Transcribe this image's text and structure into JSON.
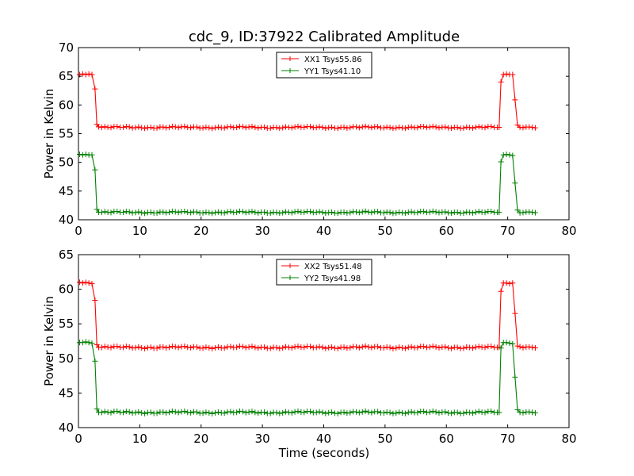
{
  "figure": {
    "title": "cdc_9, ID:37922 Calibrated Amplitude",
    "xlabel": "Time (seconds)"
  },
  "chart_data": [
    {
      "type": "line",
      "title": "cdc_9, ID:37922 Calibrated Amplitude",
      "xlabel": "",
      "ylabel": "Power in Kelvin",
      "xlim": [
        0,
        80
      ],
      "ylim": [
        40,
        70
      ],
      "xticks": [
        "0",
        "10",
        "20",
        "30",
        "40",
        "50",
        "60",
        "70",
        "80"
      ],
      "yticks": [
        "40",
        "45",
        "50",
        "55",
        "60",
        "65",
        "70"
      ],
      "grid": false,
      "legend_position": "top-center",
      "marker": "+",
      "series": [
        {
          "name": "XX1 Tsys55.86",
          "color": "#ff0000",
          "baseline": 56.1,
          "high": 65.3,
          "x": [
            0.2,
            0.7,
            1.2,
            1.7,
            2.2,
            2.7,
            3.0,
            3.3,
            68.6,
            68.9,
            69.3,
            69.8,
            70.3,
            70.8,
            71.2,
            71.6,
            72.0
          ],
          "y": [
            65.3,
            65.4,
            65.3,
            65.4,
            65.3,
            62.8,
            56.6,
            56.2,
            56.1,
            64.0,
            65.3,
            65.4,
            65.3,
            65.3,
            60.9,
            56.5,
            56.1
          ]
        },
        {
          "name": "YY1 Tsys41.10",
          "color": "#008000",
          "baseline": 41.3,
          "high": 51.3,
          "x": [
            0.2,
            0.7,
            1.2,
            1.7,
            2.2,
            2.7,
            3.0,
            3.3,
            68.6,
            68.9,
            69.3,
            69.8,
            70.3,
            70.8,
            71.2,
            71.6,
            72.0
          ],
          "y": [
            51.4,
            51.3,
            51.4,
            51.3,
            51.3,
            48.7,
            41.8,
            41.3,
            41.3,
            50.1,
            51.3,
            51.4,
            51.3,
            51.2,
            46.4,
            41.7,
            41.2
          ]
        }
      ]
    },
    {
      "type": "line",
      "title": "",
      "xlabel": "Time (seconds)",
      "ylabel": "Power in Kelvin",
      "xlim": [
        0,
        80
      ],
      "ylim": [
        40,
        65
      ],
      "xticks": [
        "0",
        "10",
        "20",
        "30",
        "40",
        "50",
        "60",
        "70",
        "80"
      ],
      "yticks": [
        "40",
        "45",
        "50",
        "55",
        "60",
        "65"
      ],
      "grid": false,
      "legend_position": "top-center",
      "marker": "+",
      "series": [
        {
          "name": "XX2 Tsys51.48",
          "color": "#ff0000",
          "baseline": 51.6,
          "high": 60.9,
          "x": [
            0.2,
            0.7,
            1.2,
            1.7,
            2.2,
            2.7,
            3.0,
            3.3,
            68.6,
            68.9,
            69.3,
            69.8,
            70.3,
            70.8,
            71.2,
            71.6,
            72.0
          ],
          "y": [
            61.0,
            60.9,
            61.0,
            60.9,
            60.8,
            58.4,
            52.0,
            51.6,
            51.6,
            59.7,
            60.9,
            60.9,
            60.8,
            60.9,
            56.5,
            51.8,
            51.7
          ]
        },
        {
          "name": "YY2 Tsys41.98",
          "color": "#008000",
          "baseline": 42.2,
          "high": 52.3,
          "x": [
            0.2,
            0.7,
            1.2,
            1.7,
            2.2,
            2.7,
            3.0,
            3.3,
            68.6,
            68.9,
            69.3,
            69.8,
            70.3,
            70.8,
            71.2,
            71.6,
            72.0
          ],
          "y": [
            52.3,
            52.3,
            52.4,
            52.3,
            52.2,
            49.6,
            42.7,
            42.2,
            42.2,
            51.5,
            52.3,
            52.3,
            52.2,
            52.1,
            47.3,
            42.6,
            42.2
          ]
        }
      ]
    }
  ]
}
